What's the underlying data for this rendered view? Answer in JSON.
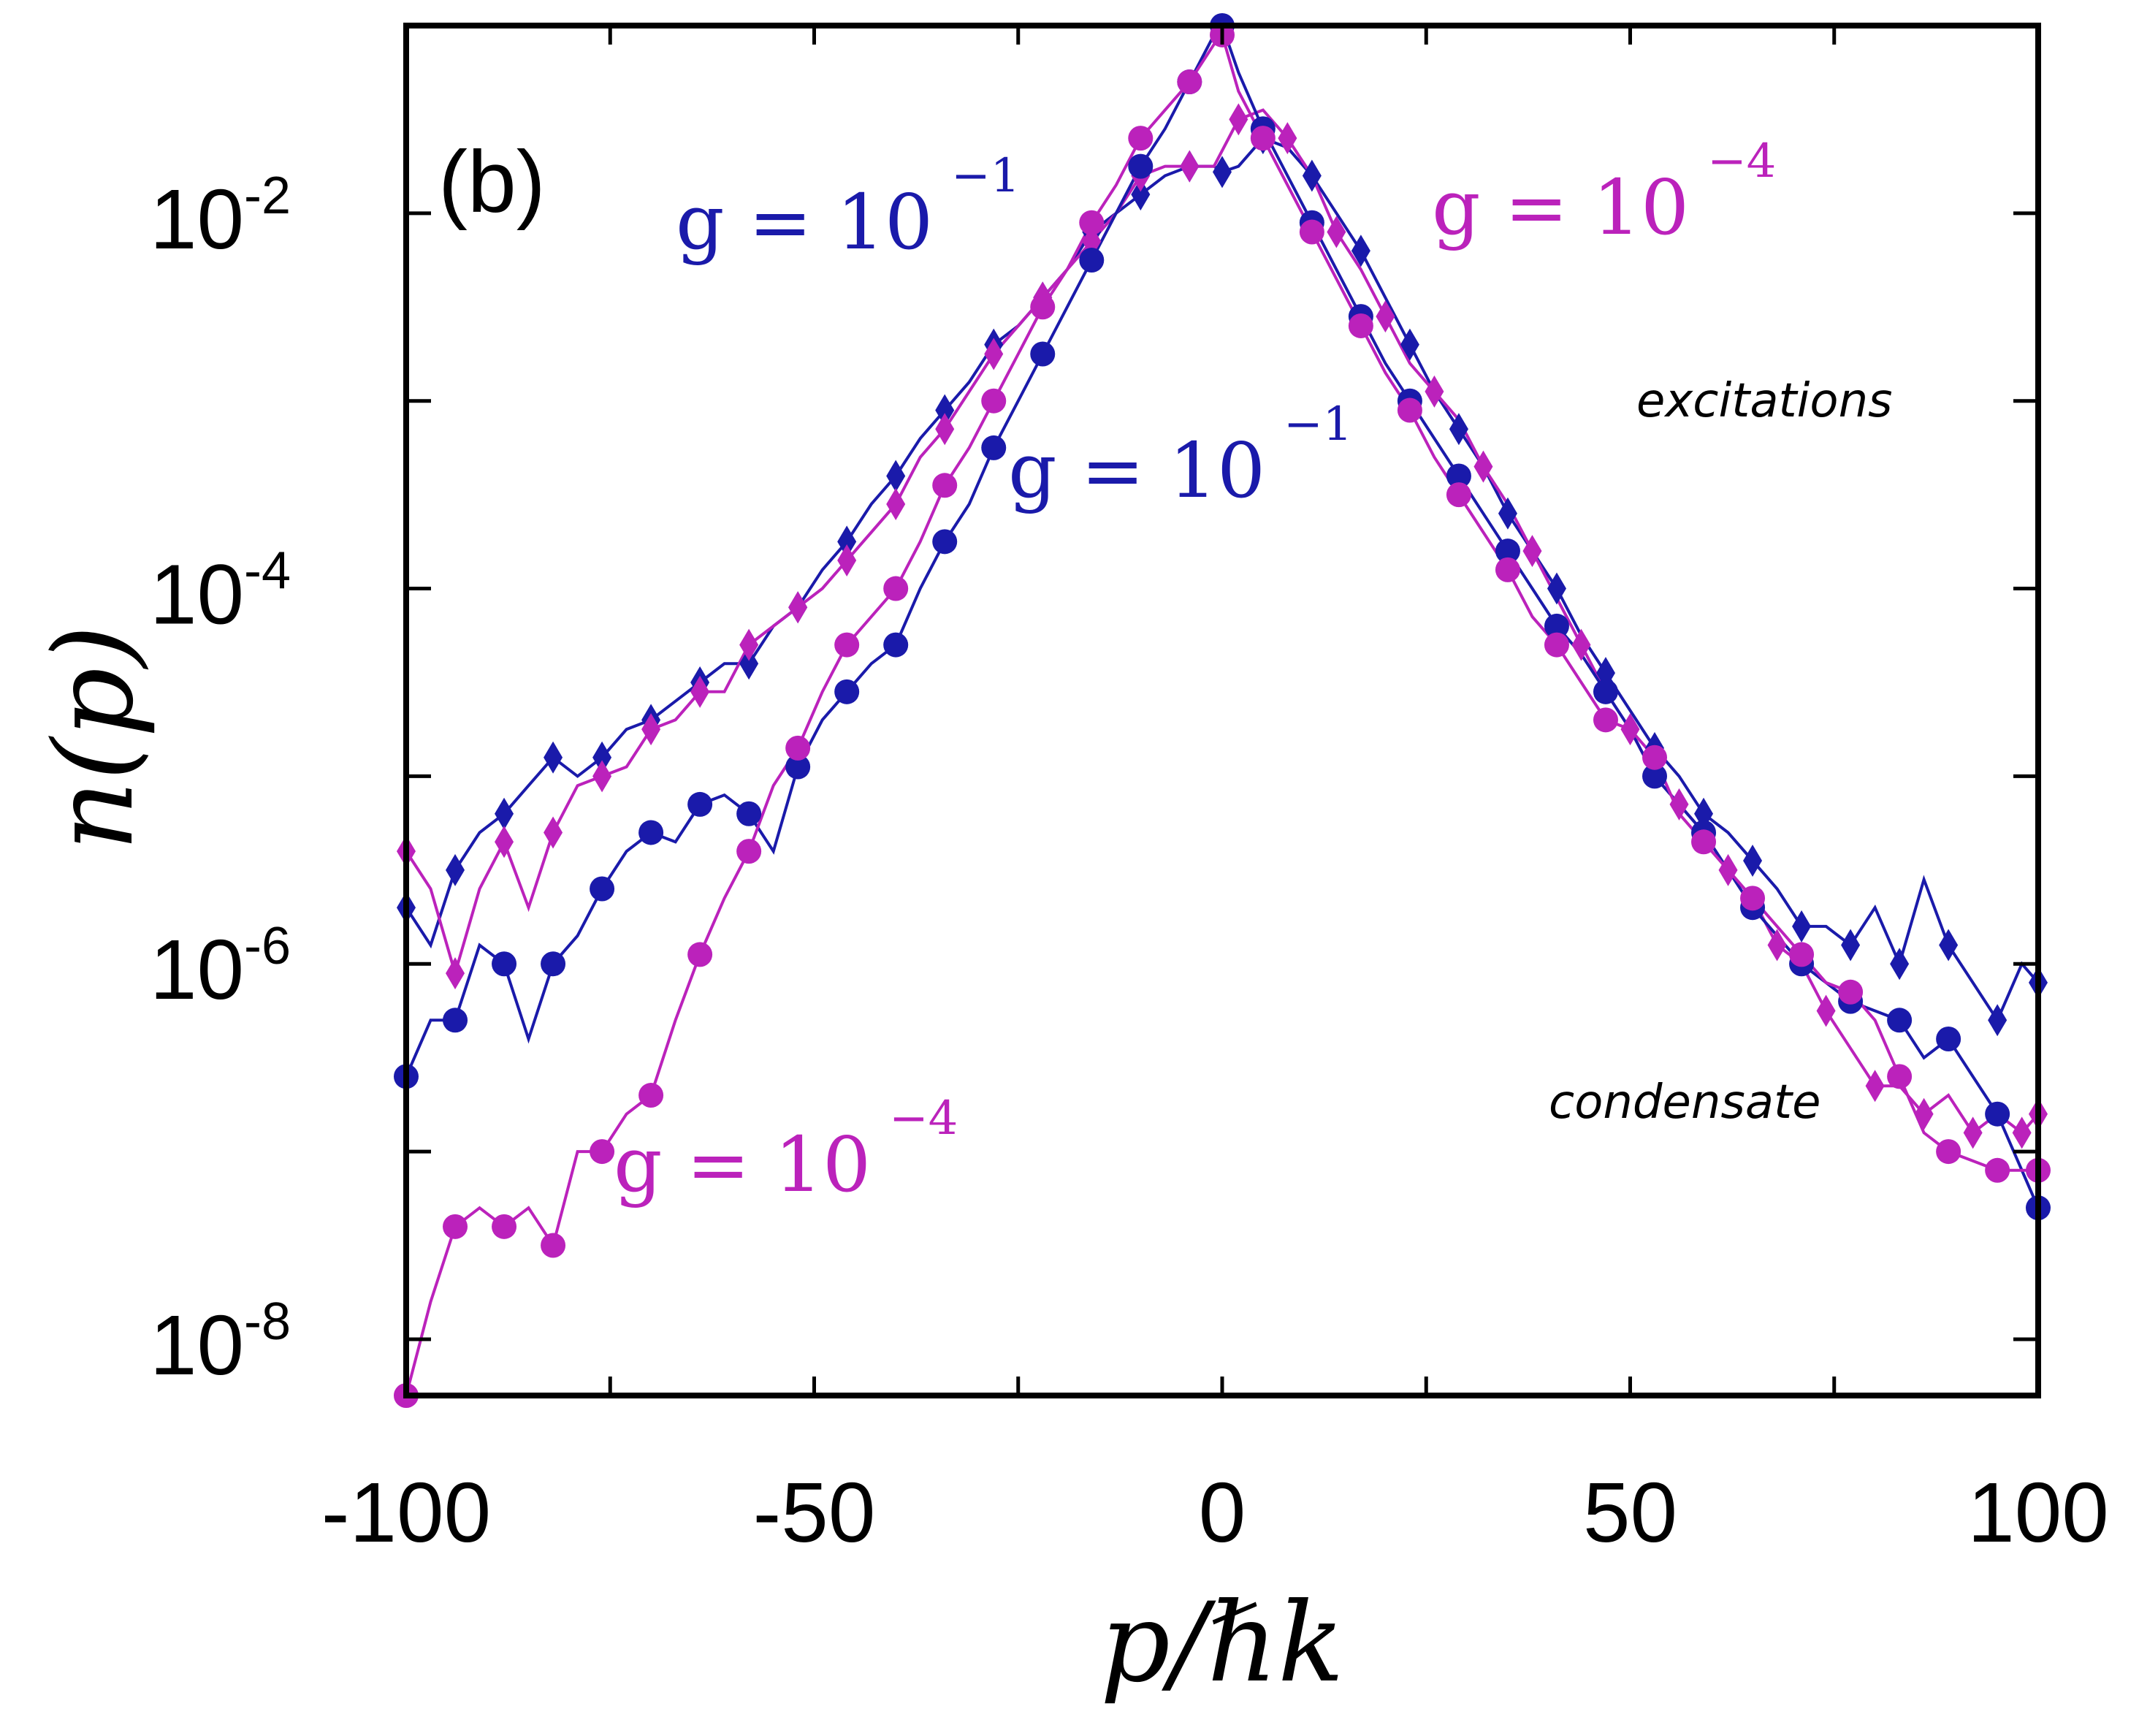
{
  "chart_data": {
    "type": "line",
    "panel_label": "(b)",
    "xlabel": "p/ℏk",
    "ylabel": "n(p)",
    "xlim": [
      -100,
      100
    ],
    "ylog_range": [
      -8.3,
      -1.0
    ],
    "x_ticks": [
      -100,
      -50,
      0,
      50,
      100
    ],
    "x_tick_labels": [
      "-100",
      "-50",
      "0",
      "50",
      "100"
    ],
    "y_ticks": [
      {
        "value": -2,
        "base": "10",
        "exp": "-2"
      },
      {
        "value": -4,
        "base": "10",
        "exp": "-4"
      },
      {
        "value": -6,
        "base": "10",
        "exp": "-6"
      },
      {
        "value": -8,
        "base": "10",
        "exp": "-8"
      }
    ],
    "colors": {
      "blue": "#1a1aaa",
      "magenta": "#bb22bb"
    },
    "series": [
      {
        "name": "excitations g = 10^-1",
        "color": "#1a1aaa",
        "marker": "diamond",
        "x": [
          -100,
          -97,
          -94,
          -91,
          -88,
          -85,
          -82,
          -79,
          -76,
          -73,
          -70,
          -67,
          -64,
          -61,
          -58,
          -55,
          -52,
          -49,
          -46,
          -43,
          -40,
          -37,
          -34,
          -31,
          -28,
          -25,
          -22,
          -19,
          -16,
          -13,
          -10,
          -7,
          -4,
          -1,
          0,
          2,
          5,
          8,
          11,
          14,
          17,
          20,
          23,
          26,
          29,
          32,
          35,
          38,
          41,
          44,
          47,
          50,
          53,
          56,
          59,
          62,
          65,
          68,
          71,
          74,
          77,
          80,
          83,
          86,
          89,
          92,
          95,
          98,
          100
        ],
        "log10y": [
          -5.7,
          -5.9,
          -5.5,
          -5.3,
          -5.2,
          -5.05,
          -4.9,
          -5.0,
          -4.9,
          -4.75,
          -4.7,
          -4.6,
          -4.5,
          -4.4,
          -4.4,
          -4.2,
          -4.1,
          -3.9,
          -3.75,
          -3.55,
          -3.4,
          -3.2,
          -3.05,
          -2.9,
          -2.7,
          -2.6,
          -2.45,
          -2.3,
          -2.1,
          -2.0,
          -1.9,
          -1.8,
          -1.75,
          -1.75,
          -1.78,
          -1.75,
          -1.6,
          -1.65,
          -1.8,
          -2.0,
          -2.2,
          -2.45,
          -2.7,
          -2.95,
          -3.15,
          -3.35,
          -3.6,
          -3.8,
          -4.0,
          -4.25,
          -4.45,
          -4.65,
          -4.85,
          -5.0,
          -5.2,
          -5.3,
          -5.45,
          -5.6,
          -5.8,
          -5.8,
          -5.9,
          -5.7,
          -6.0,
          -5.55,
          -5.9,
          -6.1,
          -6.3,
          -6.0,
          -6.1
        ]
      },
      {
        "name": "excitations g = 10^-4",
        "color": "#bb22bb",
        "marker": "diamond",
        "x": [
          -100,
          -97,
          -94,
          -91,
          -88,
          -85,
          -82,
          -79,
          -76,
          -73,
          -70,
          -67,
          -64,
          -61,
          -58,
          -55,
          -52,
          -49,
          -46,
          -43,
          -40,
          -37,
          -34,
          -31,
          -28,
          -25,
          -22,
          -19,
          -16,
          -13,
          -10,
          -7,
          -4,
          -1,
          2,
          5,
          8,
          11,
          14,
          17,
          20,
          23,
          26,
          29,
          32,
          35,
          38,
          41,
          44,
          47,
          50,
          53,
          56,
          59,
          62,
          65,
          68,
          71,
          74,
          77,
          80,
          83,
          86,
          89,
          92,
          95,
          98,
          100
        ],
        "log10y": [
          -5.4,
          -5.6,
          -6.05,
          -5.6,
          -5.35,
          -5.7,
          -5.3,
          -5.05,
          -5.0,
          -4.95,
          -4.75,
          -4.7,
          -4.55,
          -4.55,
          -4.3,
          -4.2,
          -4.1,
          -4.0,
          -3.85,
          -3.7,
          -3.55,
          -3.3,
          -3.15,
          -2.95,
          -2.75,
          -2.6,
          -2.45,
          -2.3,
          -2.15,
          -2.0,
          -1.8,
          -1.75,
          -1.75,
          -1.75,
          -1.5,
          -1.45,
          -1.6,
          -1.8,
          -2.1,
          -2.3,
          -2.55,
          -2.8,
          -2.95,
          -3.1,
          -3.35,
          -3.55,
          -3.8,
          -4.05,
          -4.3,
          -4.55,
          -4.75,
          -5.0,
          -5.15,
          -5.3,
          -5.5,
          -5.65,
          -5.9,
          -6.0,
          -6.25,
          -6.45,
          -6.65,
          -6.65,
          -6.8,
          -6.7,
          -6.9,
          -6.8,
          -6.9,
          -6.8,
          -6.8
        ]
      },
      {
        "name": "condensate g = 10^-1",
        "color": "#1a1aaa",
        "marker": "circle",
        "x": [
          -100,
          -97,
          -94,
          -91,
          -88,
          -85,
          -82,
          -79,
          -76,
          -73,
          -70,
          -67,
          -64,
          -61,
          -58,
          -55,
          -52,
          -49,
          -46,
          -43,
          -40,
          -37,
          -34,
          -31,
          -28,
          -25,
          -22,
          -19,
          -16,
          -13,
          -10,
          -7,
          -4,
          -1,
          0,
          2,
          5,
          8,
          11,
          14,
          17,
          20,
          23,
          26,
          29,
          32,
          35,
          38,
          41,
          44,
          47,
          50,
          53,
          56,
          59,
          62,
          65,
          68,
          71,
          74,
          77,
          80,
          83,
          86,
          89,
          92,
          95,
          98,
          100
        ],
        "log10y": [
          -6.6,
          -6.3,
          -6.3,
          -5.9,
          -6.0,
          -6.4,
          -6.0,
          -5.85,
          -5.6,
          -5.4,
          -5.3,
          -5.35,
          -5.15,
          -5.1,
          -5.2,
          -5.4,
          -4.95,
          -4.7,
          -4.55,
          -4.4,
          -4.3,
          -4.0,
          -3.75,
          -3.55,
          -3.25,
          -3.0,
          -2.75,
          -2.5,
          -2.25,
          -2.0,
          -1.75,
          -1.55,
          -1.3,
          -1.05,
          -1.0,
          -1.25,
          -1.55,
          -1.8,
          -2.05,
          -2.3,
          -2.55,
          -2.8,
          -3.0,
          -3.2,
          -3.4,
          -3.6,
          -3.8,
          -4.0,
          -4.2,
          -4.35,
          -4.55,
          -4.75,
          -5.0,
          -5.15,
          -5.3,
          -5.5,
          -5.7,
          -5.85,
          -6.0,
          -6.1,
          -6.2,
          -6.25,
          -6.3,
          -6.5,
          -6.4,
          -6.6,
          -6.8,
          -7.1,
          -7.3
        ]
      },
      {
        "name": "condensate g = 10^-4",
        "color": "#bb22bb",
        "marker": "circle",
        "x": [
          -100,
          -97,
          -94,
          -91,
          -88,
          -85,
          -82,
          -79,
          -76,
          -73,
          -70,
          -67,
          -64,
          -61,
          -58,
          -55,
          -52,
          -49,
          -46,
          -43,
          -40,
          -37,
          -34,
          -31,
          -28,
          -25,
          -22,
          -19,
          -16,
          -13,
          -10,
          -7,
          -4,
          -1,
          0,
          2,
          5,
          8,
          11,
          14,
          17,
          20,
          23,
          26,
          29,
          32,
          35,
          38,
          41,
          44,
          47,
          50,
          53,
          56,
          59,
          62,
          65,
          68,
          71,
          74,
          77,
          80,
          83,
          86,
          89,
          92,
          95,
          98,
          100
        ],
        "log10y": [
          -8.3,
          -7.8,
          -7.4,
          -7.3,
          -7.4,
          -7.3,
          -7.5,
          -7.0,
          -7.0,
          -6.8,
          -6.7,
          -6.3,
          -5.95,
          -5.65,
          -5.4,
          -5.05,
          -4.85,
          -4.55,
          -4.3,
          -4.15,
          -4.0,
          -3.75,
          -3.45,
          -3.25,
          -3.0,
          -2.75,
          -2.5,
          -2.3,
          -2.05,
          -1.85,
          -1.6,
          -1.45,
          -1.3,
          -1.1,
          -1.05,
          -1.35,
          -1.6,
          -1.85,
          -2.1,
          -2.35,
          -2.6,
          -2.85,
          -3.05,
          -3.3,
          -3.5,
          -3.7,
          -3.9,
          -4.15,
          -4.3,
          -4.5,
          -4.7,
          -4.75,
          -4.9,
          -5.2,
          -5.35,
          -5.5,
          -5.65,
          -5.8,
          -5.95,
          -6.1,
          -6.15,
          -6.3,
          -6.6,
          -6.9,
          -7.0,
          -7.05,
          -7.1,
          -7.1,
          -7.1
        ]
      }
    ],
    "annotations": [
      {
        "id": "g1-left",
        "text_base": "g = 10",
        "text_exp": "−1",
        "color": "#1a1aaa"
      },
      {
        "id": "g4-right",
        "text_base": "g = 10",
        "text_exp": "−4",
        "color": "#bb22bb"
      },
      {
        "id": "g1-mid",
        "text_base": "g = 10",
        "text_exp": "−1",
        "color": "#1a1aaa"
      },
      {
        "id": "g4-left",
        "text_base": "g = 10",
        "text_exp": "−4",
        "color": "#bb22bb"
      },
      {
        "id": "excitations",
        "text": "excitations"
      },
      {
        "id": "condensate",
        "text": "condensate"
      }
    ]
  }
}
